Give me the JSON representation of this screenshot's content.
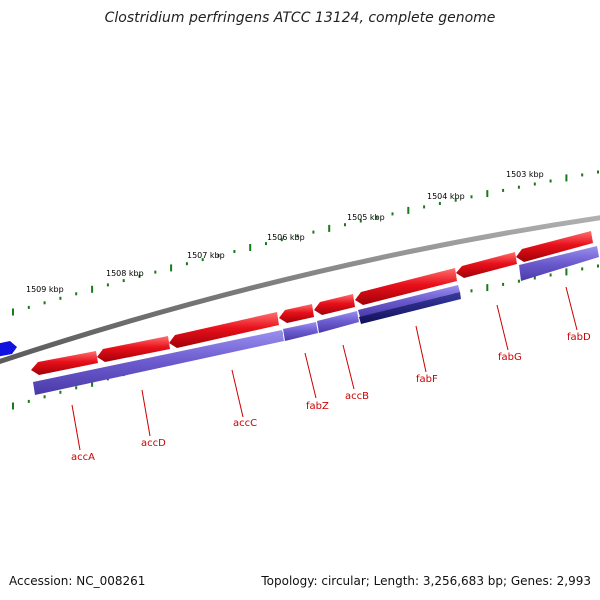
{
  "title": "Clostridium perfringens ATCC 13124, complete genome",
  "accession": "Accession: NC_008261",
  "summary": "Topology: circular; Length: 3,256,683 bp; Genes: 2,993",
  "colors": {
    "backbone": "#8a8a8a",
    "forward_gene": "#e8101a",
    "reverse_gene": "#6a5acd",
    "highlight_gene": "#1a1a7a",
    "other_gene": "#1212e0",
    "tick": "#1a7a1a",
    "label": "#cc0000"
  },
  "ticks": [
    {
      "label": "1509 kbp"
    },
    {
      "label": "1508 kbp"
    },
    {
      "label": "1507 kbp"
    },
    {
      "label": "1506 kbp"
    },
    {
      "label": "1505 kbp"
    },
    {
      "label": "1504 kbp"
    },
    {
      "label": "1503 kbp"
    }
  ],
  "genes": [
    {
      "name": "accA"
    },
    {
      "name": "accD"
    },
    {
      "name": "accC"
    },
    {
      "name": "fabZ"
    },
    {
      "name": "accB"
    },
    {
      "name": "fabF"
    },
    {
      "name": "fabG"
    },
    {
      "name": "fabD"
    }
  ]
}
